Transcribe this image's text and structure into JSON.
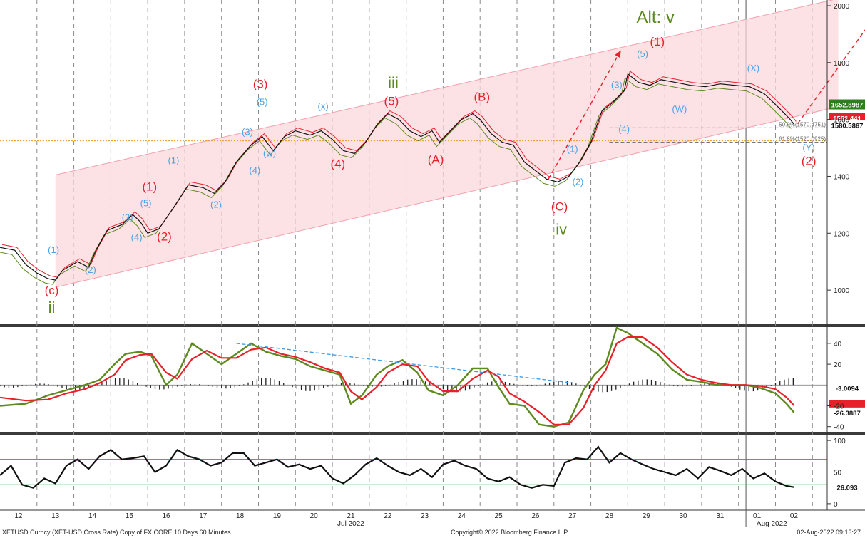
{
  "footer": {
    "left": "XETUSD Curncy (XET-USD Cross Rate) Copy of FX CORE 10 Days 60 Minutes",
    "center": "Copyright© 2022 Bloomberg Finance L.P.",
    "right": "02-Aug-2022 09:13:27"
  },
  "chart_data": [
    {
      "type": "line",
      "panel": "price",
      "ylim": [
        880,
        2020
      ],
      "yticks": [
        "1000",
        "1200",
        "1400",
        "1600",
        "1800",
        "2000"
      ],
      "x_labels": [
        "12",
        "13",
        "14",
        "15",
        "16",
        "17",
        "18",
        "19",
        "20",
        "21",
        "22",
        "23",
        "24",
        "25",
        "26",
        "27",
        "28",
        "29",
        "30",
        "31",
        "01",
        "02"
      ],
      "x_label_positions": [
        12,
        13,
        14,
        15,
        16,
        17,
        18,
        19,
        20,
        21,
        22,
        23,
        24,
        25,
        26,
        27,
        28,
        29,
        30,
        31,
        32,
        33
      ],
      "month_labels": [
        {
          "text": "Jul 2022",
          "x": 21
        },
        {
          "text": "Aug 2022",
          "x": 32.4
        }
      ],
      "price_path": [
        [
          11.5,
          1150
        ],
        [
          11.9,
          1140
        ],
        [
          12.2,
          1090
        ],
        [
          12.5,
          1060
        ],
        [
          12.8,
          1040
        ],
        [
          13.0,
          1035
        ],
        [
          13.2,
          1070
        ],
        [
          13.6,
          1100
        ],
        [
          13.9,
          1080
        ],
        [
          14.1,
          1140
        ],
        [
          14.4,
          1210
        ],
        [
          14.8,
          1230
        ],
        [
          15.1,
          1265
        ],
        [
          15.3,
          1240
        ],
        [
          15.5,
          1200
        ],
        [
          15.8,
          1215
        ],
        [
          16.2,
          1290
        ],
        [
          16.6,
          1370
        ],
        [
          17.0,
          1360
        ],
        [
          17.3,
          1340
        ],
        [
          17.6,
          1380
        ],
        [
          17.9,
          1450
        ],
        [
          18.3,
          1510
        ],
        [
          18.6,
          1540
        ],
        [
          18.9,
          1490
        ],
        [
          19.2,
          1540
        ],
        [
          19.5,
          1560
        ],
        [
          19.9,
          1545
        ],
        [
          20.2,
          1560
        ],
        [
          20.5,
          1530
        ],
        [
          20.8,
          1490
        ],
        [
          21.1,
          1480
        ],
        [
          21.4,
          1520
        ],
        [
          21.7,
          1580
        ],
        [
          22.0,
          1620
        ],
        [
          22.3,
          1600
        ],
        [
          22.6,
          1560
        ],
        [
          22.9,
          1540
        ],
        [
          23.2,
          1560
        ],
        [
          23.4,
          1520
        ],
        [
          23.7,
          1560
        ],
        [
          24.0,
          1600
        ],
        [
          24.3,
          1620
        ],
        [
          24.5,
          1600
        ],
        [
          24.8,
          1550
        ],
        [
          25.1,
          1520
        ],
        [
          25.4,
          1510
        ],
        [
          25.7,
          1450
        ],
        [
          26.0,
          1420
        ],
        [
          26.3,
          1390
        ],
        [
          26.6,
          1380
        ],
        [
          26.9,
          1400
        ],
        [
          27.2,
          1450
        ],
        [
          27.5,
          1520
        ],
        [
          27.8,
          1630
        ],
        [
          28.1,
          1660
        ],
        [
          28.4,
          1700
        ],
        [
          28.5,
          1760
        ],
        [
          28.8,
          1730
        ],
        [
          29.1,
          1720
        ],
        [
          29.4,
          1740
        ],
        [
          29.8,
          1730
        ],
        [
          30.2,
          1720
        ],
        [
          30.6,
          1715
        ],
        [
          31.0,
          1725
        ],
        [
          31.4,
          1720
        ],
        [
          31.8,
          1715
        ],
        [
          32.2,
          1690
        ],
        [
          32.6,
          1640
        ],
        [
          32.9,
          1600
        ],
        [
          33.0,
          1583
        ]
      ],
      "last_values": [
        "1652.8987",
        "1582.441",
        "1580.5867"
      ],
      "fib_levels": [
        {
          "label": "50.0%(1570.4751)",
          "value": 1570.4751
        },
        {
          "label": "61.8%(1520.0925)",
          "value": 1520.0925
        }
      ],
      "reference_line": 1525,
      "annotations": [
        {
          "text": "(1)",
          "x": 12.95,
          "y": 1130,
          "color": "blue"
        },
        {
          "text": "(2)",
          "x": 13.95,
          "y": 1060,
          "color": "blue"
        },
        {
          "text": "(3)",
          "x": 14.95,
          "y": 1245,
          "color": "blue"
        },
        {
          "text": "(4)",
          "x": 15.2,
          "y": 1175,
          "color": "blue"
        },
        {
          "text": "(5)",
          "x": 15.45,
          "y": 1295,
          "color": "blue"
        },
        {
          "text": "(1)",
          "x": 16.2,
          "y": 1445,
          "color": "blue"
        },
        {
          "text": "(2)",
          "x": 17.35,
          "y": 1290,
          "color": "blue"
        },
        {
          "text": "(3)",
          "x": 18.2,
          "y": 1545,
          "color": "blue"
        },
        {
          "text": "(4)",
          "x": 18.4,
          "y": 1410,
          "color": "blue"
        },
        {
          "text": "(w)",
          "x": 18.8,
          "y": 1470,
          "color": "blue"
        },
        {
          "text": "(5)",
          "x": 18.6,
          "y": 1650,
          "color": "blue"
        },
        {
          "text": "(x)",
          "x": 20.25,
          "y": 1635,
          "color": "blue"
        },
        {
          "text": "(1)",
          "x": 27.0,
          "y": 1485,
          "color": "blue"
        },
        {
          "text": "(2)",
          "x": 27.15,
          "y": 1370,
          "color": "blue"
        },
        {
          "text": "(3)",
          "x": 28.2,
          "y": 1710,
          "color": "blue"
        },
        {
          "text": "(4)",
          "x": 28.4,
          "y": 1555,
          "color": "blue"
        },
        {
          "text": "(5)",
          "x": 28.9,
          "y": 1820,
          "color": "blue"
        },
        {
          "text": "(W)",
          "x": 29.9,
          "y": 1625,
          "color": "blue"
        },
        {
          "text": "(X)",
          "x": 31.9,
          "y": 1770,
          "color": "blue"
        },
        {
          "text": "(Y)",
          "x": 33.4,
          "y": 1490,
          "color": "blue"
        },
        {
          "text": "(1)",
          "x": 15.55,
          "y": 1350,
          "color": "red"
        },
        {
          "text": "(2)",
          "x": 15.95,
          "y": 1175,
          "color": "red"
        },
        {
          "text": "(3)",
          "x": 18.55,
          "y": 1710,
          "color": "red"
        },
        {
          "text": "(4)",
          "x": 20.65,
          "y": 1430,
          "color": "red"
        },
        {
          "text": "(5)",
          "x": 22.1,
          "y": 1650,
          "color": "red"
        },
        {
          "text": "(A)",
          "x": 23.3,
          "y": 1445,
          "color": "red"
        },
        {
          "text": "(B)",
          "x": 24.55,
          "y": 1665,
          "color": "red"
        },
        {
          "text": "(C)",
          "x": 26.65,
          "y": 1280,
          "color": "red"
        },
        {
          "text": "(1)",
          "x": 29.3,
          "y": 1860,
          "color": "red"
        },
        {
          "text": "(2)",
          "x": 33.4,
          "y": 1440,
          "color": "red"
        },
        {
          "text": "(c)",
          "x": 12.9,
          "y": 985,
          "color": "red"
        },
        {
          "text": "ii",
          "x": 12.9,
          "y": 920,
          "color": "green"
        },
        {
          "text": "iii",
          "x": 22.15,
          "y": 1710,
          "color": "green"
        },
        {
          "text": "iv",
          "x": 26.7,
          "y": 1195,
          "color": "green"
        },
        {
          "text": "Alt: v",
          "x": 29.25,
          "y": 1940,
          "color": "green"
        }
      ]
    },
    {
      "type": "line",
      "panel": "macd",
      "ylim": [
        -45,
        55
      ],
      "yticks": [
        "-40",
        "-20",
        "20",
        "40"
      ],
      "last_values": [
        "-3.0094",
        "-19.6",
        "-26.3887"
      ],
      "green_path": [
        [
          11.5,
          -20
        ],
        [
          12.2,
          -18
        ],
        [
          12.8,
          -10
        ],
        [
          13.3,
          -5
        ],
        [
          13.8,
          0
        ],
        [
          14.2,
          5
        ],
        [
          14.6,
          20
        ],
        [
          14.9,
          30
        ],
        [
          15.3,
          32
        ],
        [
          15.6,
          28
        ],
        [
          16.0,
          0
        ],
        [
          16.3,
          10
        ],
        [
          16.7,
          40
        ],
        [
          17.1,
          30
        ],
        [
          17.5,
          20
        ],
        [
          17.9,
          30
        ],
        [
          18.3,
          40
        ],
        [
          18.7,
          32
        ],
        [
          19.1,
          28
        ],
        [
          19.5,
          25
        ],
        [
          19.9,
          18
        ],
        [
          20.3,
          14
        ],
        [
          20.7,
          10
        ],
        [
          21.0,
          -18
        ],
        [
          21.3,
          -10
        ],
        [
          21.7,
          10
        ],
        [
          22.0,
          18
        ],
        [
          22.4,
          24
        ],
        [
          22.8,
          12
        ],
        [
          23.1,
          -5
        ],
        [
          23.5,
          -10
        ],
        [
          23.9,
          0
        ],
        [
          24.3,
          16
        ],
        [
          24.7,
          16
        ],
        [
          25.0,
          -2
        ],
        [
          25.3,
          -18
        ],
        [
          25.7,
          -20
        ],
        [
          26.1,
          -38
        ],
        [
          26.5,
          -40
        ],
        [
          26.9,
          -36
        ],
        [
          27.3,
          -5
        ],
        [
          27.6,
          10
        ],
        [
          27.9,
          20
        ],
        [
          28.2,
          55
        ],
        [
          28.5,
          50
        ],
        [
          28.9,
          40
        ],
        [
          29.3,
          30
        ],
        [
          29.7,
          15
        ],
        [
          30.1,
          5
        ],
        [
          30.5,
          3
        ],
        [
          30.9,
          0
        ],
        [
          31.3,
          0
        ],
        [
          31.7,
          0
        ],
        [
          32.1,
          -3
        ],
        [
          32.5,
          -8
        ],
        [
          32.8,
          -18
        ],
        [
          33.0,
          -26.4
        ]
      ],
      "red_path": [
        [
          11.5,
          -12
        ],
        [
          12.2,
          -15
        ],
        [
          12.8,
          -14
        ],
        [
          13.3,
          -8
        ],
        [
          13.8,
          -4
        ],
        [
          14.2,
          2
        ],
        [
          14.6,
          10
        ],
        [
          14.9,
          24
        ],
        [
          15.3,
          29
        ],
        [
          15.6,
          30
        ],
        [
          16.0,
          12
        ],
        [
          16.3,
          6
        ],
        [
          16.7,
          25
        ],
        [
          17.1,
          33
        ],
        [
          17.5,
          26
        ],
        [
          17.9,
          26
        ],
        [
          18.3,
          34
        ],
        [
          18.7,
          36
        ],
        [
          19.1,
          30
        ],
        [
          19.5,
          27
        ],
        [
          19.9,
          22
        ],
        [
          20.3,
          16
        ],
        [
          20.7,
          12
        ],
        [
          21.0,
          -6
        ],
        [
          21.3,
          -14
        ],
        [
          21.7,
          -2
        ],
        [
          22.0,
          12
        ],
        [
          22.4,
          20
        ],
        [
          22.8,
          18
        ],
        [
          23.1,
          4
        ],
        [
          23.5,
          -6
        ],
        [
          23.9,
          -6
        ],
        [
          24.3,
          6
        ],
        [
          24.7,
          14
        ],
        [
          25.0,
          8
        ],
        [
          25.3,
          -8
        ],
        [
          25.7,
          -16
        ],
        [
          26.1,
          -26
        ],
        [
          26.5,
          -38
        ],
        [
          26.9,
          -38
        ],
        [
          27.3,
          -22
        ],
        [
          27.6,
          0
        ],
        [
          27.9,
          14
        ],
        [
          28.2,
          40
        ],
        [
          28.5,
          46
        ],
        [
          28.9,
          46
        ],
        [
          29.3,
          36
        ],
        [
          29.7,
          22
        ],
        [
          30.1,
          10
        ],
        [
          30.5,
          5
        ],
        [
          30.9,
          2
        ],
        [
          31.3,
          0
        ],
        [
          31.7,
          0
        ],
        [
          32.1,
          -1
        ],
        [
          32.5,
          -4
        ],
        [
          32.8,
          -12
        ],
        [
          33.0,
          -19.6
        ]
      ],
      "trend_line": [
        [
          17.9,
          40
        ],
        [
          27.0,
          2
        ]
      ]
    },
    {
      "type": "line",
      "panel": "rsi",
      "ylim": [
        -8,
        108
      ],
      "yticks": [
        "0",
        "50",
        "100"
      ],
      "upper_band": 70,
      "lower_band": 30,
      "last_values": [
        "26.093"
      ],
      "path": [
        [
          11.5,
          45
        ],
        [
          11.8,
          60
        ],
        [
          12.1,
          30
        ],
        [
          12.4,
          25
        ],
        [
          12.7,
          40
        ],
        [
          13.0,
          32
        ],
        [
          13.3,
          60
        ],
        [
          13.6,
          70
        ],
        [
          13.9,
          55
        ],
        [
          14.2,
          75
        ],
        [
          14.5,
          85
        ],
        [
          14.8,
          70
        ],
        [
          15.1,
          72
        ],
        [
          15.4,
          75
        ],
        [
          15.7,
          50
        ],
        [
          16.0,
          60
        ],
        [
          16.3,
          85
        ],
        [
          16.6,
          75
        ],
        [
          16.9,
          70
        ],
        [
          17.2,
          60
        ],
        [
          17.5,
          65
        ],
        [
          17.8,
          80
        ],
        [
          18.1,
          80
        ],
        [
          18.4,
          60
        ],
        [
          18.7,
          65
        ],
        [
          19.0,
          70
        ],
        [
          19.3,
          58
        ],
        [
          19.6,
          62
        ],
        [
          19.9,
          55
        ],
        [
          20.2,
          60
        ],
        [
          20.5,
          40
        ],
        [
          20.8,
          32
        ],
        [
          21.1,
          45
        ],
        [
          21.4,
          62
        ],
        [
          21.7,
          72
        ],
        [
          22.0,
          60
        ],
        [
          22.3,
          50
        ],
        [
          22.6,
          45
        ],
        [
          22.9,
          55
        ],
        [
          23.2,
          42
        ],
        [
          23.5,
          62
        ],
        [
          23.8,
          68
        ],
        [
          24.1,
          60
        ],
        [
          24.4,
          55
        ],
        [
          24.7,
          40
        ],
        [
          25.0,
          35
        ],
        [
          25.3,
          42
        ],
        [
          25.6,
          30
        ],
        [
          25.9,
          25
        ],
        [
          26.2,
          30
        ],
        [
          26.5,
          28
        ],
        [
          26.8,
          65
        ],
        [
          27.1,
          72
        ],
        [
          27.4,
          70
        ],
        [
          27.7,
          90
        ],
        [
          28.0,
          65
        ],
        [
          28.3,
          80
        ],
        [
          28.6,
          70
        ],
        [
          28.9,
          62
        ],
        [
          29.2,
          55
        ],
        [
          29.5,
          50
        ],
        [
          29.8,
          45
        ],
        [
          30.1,
          55
        ],
        [
          30.4,
          40
        ],
        [
          30.7,
          58
        ],
        [
          31.0,
          52
        ],
        [
          31.3,
          45
        ],
        [
          31.6,
          55
        ],
        [
          31.9,
          40
        ],
        [
          32.2,
          48
        ],
        [
          32.5,
          35
        ],
        [
          32.8,
          28
        ],
        [
          33.0,
          26.1
        ]
      ]
    }
  ]
}
